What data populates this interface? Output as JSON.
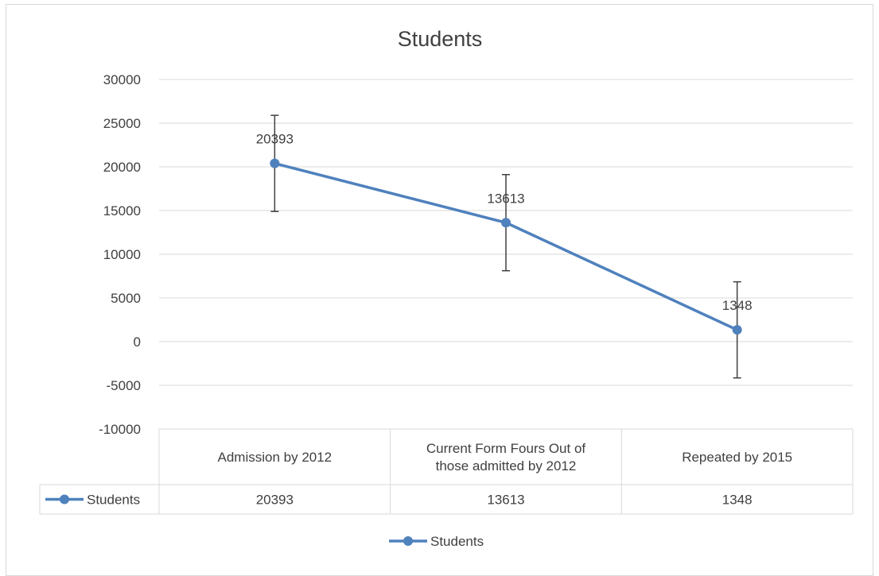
{
  "chart_data": {
    "type": "line",
    "title": "Students",
    "categories": [
      "Admission by 2012",
      "Current Form Fours Out of those admitted by 2012",
      "Repeated by 2015"
    ],
    "category_lines": [
      [
        "Admission by 2012"
      ],
      [
        "Current Form Fours Out of",
        "those admitted by 2012"
      ],
      [
        "Repeated by 2015"
      ]
    ],
    "series": [
      {
        "name": "Students",
        "values": [
          20393,
          13613,
          1348
        ],
        "error_plus": 5500,
        "error_minus": 5500
      }
    ],
    "ylim": [
      -10000,
      30000
    ],
    "yticks": [
      30000,
      25000,
      20000,
      15000,
      10000,
      5000,
      0,
      -5000,
      -10000
    ],
    "data_labels": [
      "20393",
      "13613",
      "1348"
    ],
    "grid": true,
    "legend": "bottom",
    "data_table": true,
    "colors": {
      "series": "#4f81bd",
      "grid": "#d9d9d9",
      "error": "#404040",
      "text": "#404040"
    }
  }
}
